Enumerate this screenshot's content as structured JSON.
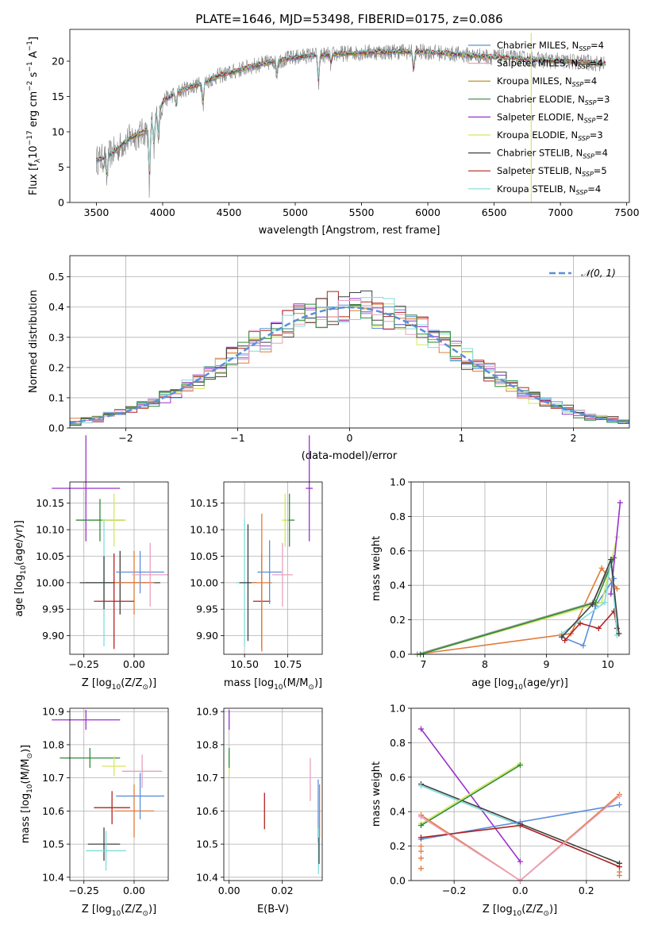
{
  "colors": {
    "chabrier_miles": "#5b8fdb",
    "salpeter_miles": "#e8a0c0",
    "kroupa_miles": "#b8860b",
    "chabrier_elodie": "#2e8b3a",
    "salpeter_elodie": "#9932cc",
    "kroupa_elodie": "#d4e860",
    "chabrier_stelib": "#404040",
    "salpeter_stelib": "#b22222",
    "kroupa_stelib": "#7fdcdc",
    "orange": "#e07b39",
    "gauss": "#5b8fdb",
    "gray_spectrum": "#808080"
  },
  "chart_data": [
    {
      "id": "spectrum",
      "type": "line",
      "title": "PLATE=1646, MJD=53498, FIBERID=0175, z=0.086",
      "xlabel": "wavelength [Angstrom, rest frame]",
      "ylabel_parts": [
        "Flux [f",
        "λ",
        "10",
        "−17",
        " erg cm",
        "−2",
        " s",
        "−1",
        " A",
        "−1",
        "]"
      ],
      "xlim": [
        3300,
        7520
      ],
      "ylim": [
        0,
        24.5
      ],
      "xticks": [
        3500,
        4000,
        4500,
        5000,
        5500,
        6000,
        6500,
        7000,
        7500
      ],
      "yticks": [
        0,
        5,
        10,
        15,
        20
      ],
      "grid": false,
      "legend_position": "top-right",
      "legend": [
        {
          "label": "Chabrier MILES, N",
          "sub": "SSP",
          "suffix": "=4",
          "color": "#5b8fdb"
        },
        {
          "label": "Salpeter MILES, N",
          "sub": "SSP",
          "suffix": "=4",
          "color": "#e8a0c0"
        },
        {
          "label": "Kroupa MILES, N",
          "sub": "SSP",
          "suffix": "=4",
          "color": "#b8860b"
        },
        {
          "label": "Chabrier ELODIE, N",
          "sub": "SSP",
          "suffix": "=3",
          "color": "#2e8b3a"
        },
        {
          "label": "Salpeter ELODIE, N",
          "sub": "SSP",
          "suffix": "=2",
          "color": "#9932cc"
        },
        {
          "label": "Kroupa ELODIE, N",
          "sub": "SSP",
          "suffix": "=3",
          "color": "#d4e860"
        },
        {
          "label": "Chabrier STELIB, N",
          "sub": "SSP",
          "suffix": "=4",
          "color": "#404040"
        },
        {
          "label": "Salpeter STELIB, N",
          "sub": "SSP",
          "suffix": "=5",
          "color": "#b22222"
        },
        {
          "label": "Kroupa STELIB, N",
          "sub": "SSP",
          "suffix": "=4",
          "color": "#7fdcdc"
        }
      ],
      "continuum": [
        [
          3500,
          6.0
        ],
        [
          3560,
          6.3
        ],
        [
          3640,
          7.3
        ],
        [
          3700,
          8.3
        ],
        [
          3760,
          9.2
        ],
        [
          3820,
          9.6
        ],
        [
          3880,
          10.2
        ],
        [
          3960,
          12.5
        ],
        [
          4010,
          14.5
        ],
        [
          4100,
          15.5
        ],
        [
          4200,
          16.3
        ],
        [
          4300,
          16.8
        ],
        [
          4400,
          17.8
        ],
        [
          4500,
          18.3
        ],
        [
          4600,
          18.9
        ],
        [
          4700,
          19.4
        ],
        [
          4800,
          19.8
        ],
        [
          4900,
          20.2
        ],
        [
          5000,
          20.5
        ],
        [
          5100,
          20.8
        ],
        [
          5200,
          20.8
        ],
        [
          5300,
          21.0
        ],
        [
          5400,
          21.1
        ],
        [
          5500,
          21.2
        ],
        [
          5600,
          21.3
        ],
        [
          5700,
          21.3
        ],
        [
          5800,
          21.4
        ],
        [
          5900,
          21.3
        ],
        [
          6000,
          21.3
        ],
        [
          6200,
          21.0
        ],
        [
          6400,
          20.7
        ],
        [
          6600,
          20.5
        ],
        [
          6800,
          20.2
        ],
        [
          7000,
          20.0
        ],
        [
          7200,
          19.8
        ],
        [
          7340,
          19.6
        ]
      ],
      "absorption_features": [
        {
          "x": 3580,
          "depth": 3.5
        },
        {
          "x": 3900,
          "depth": 9.0
        },
        {
          "x": 3934,
          "depth": 4.5
        },
        {
          "x": 3969,
          "depth": 3.5
        },
        {
          "x": 4102,
          "depth": 2.0
        },
        {
          "x": 4305,
          "depth": 3.0
        },
        {
          "x": 4861,
          "depth": 2.0
        },
        {
          "x": 5175,
          "depth": 4.5
        },
        {
          "x": 5270,
          "depth": 1.5
        },
        {
          "x": 5893,
          "depth": 3.0
        }
      ],
      "noise_amplitude": 1.2,
      "spikes": [
        {
          "x": 6780,
          "y_top": 24.0,
          "y_bottom": 0
        }
      ]
    },
    {
      "id": "residuals",
      "type": "histogram",
      "xlabel": "(data-model)/error",
      "ylabel": "Normed distribution",
      "xlim": [
        -2.5,
        2.5
      ],
      "ylim": [
        0,
        0.57
      ],
      "xticks": [
        -2,
        -1,
        0,
        1,
        2
      ],
      "yticks": [
        0.0,
        0.1,
        0.2,
        0.3,
        0.4,
        0.5
      ],
      "grid": true,
      "legend_position": "top-right",
      "gauss_label": "𝒩(0, 1)",
      "bin_width": 0.1
    },
    {
      "id": "age-vs-z",
      "type": "errorbar",
      "xlabel_parts": [
        "Z [log",
        "10",
        "(Z/Z",
        "⊙",
        ")]"
      ],
      "ylabel_parts": [
        "age  [log",
        "10",
        "(age/yr)]"
      ],
      "xlim": [
        -0.32,
        0.17
      ],
      "ylim": [
        9.865,
        10.19
      ],
      "xticks": [
        -0.25,
        0.0
      ],
      "yticks": [
        9.9,
        9.95,
        10.0,
        10.05,
        10.1,
        10.15
      ],
      "points": [
        {
          "x": -0.07,
          "y": 10.0,
          "xerr": 0.2,
          "yerr": 0.06,
          "color": "#404040"
        },
        {
          "x": 0.03,
          "y": 10.02,
          "xerr": 0.12,
          "yerr": 0.04,
          "color": "#5b8fdb"
        },
        {
          "x": -0.15,
          "y": 10.0,
          "xerr": 0.08,
          "yerr": 0.12,
          "color": "#7fdcdc"
        },
        {
          "x": -0.15,
          "y": 10.0,
          "xerr": 0.09,
          "yerr": 0.05,
          "color": "#404040"
        },
        {
          "x": 0.0,
          "y": 10.0,
          "xerr": 0.1,
          "yerr": 0.06,
          "color": "#e07b39"
        },
        {
          "x": -0.1,
          "y": 9.965,
          "xerr": 0.1,
          "yerr": 0.09,
          "color": "#b22222"
        },
        {
          "x": -0.17,
          "y": 10.118,
          "xerr": 0.12,
          "yerr": 0.04,
          "color": "#2e8b3a"
        },
        {
          "x": -0.24,
          "y": 10.178,
          "xerr": 0.17,
          "yerr": 0.1,
          "color": "#9932cc"
        },
        {
          "x": -0.1,
          "y": 10.118,
          "xerr": 0.06,
          "yerr": 0.05,
          "color": "#d4e860"
        },
        {
          "x": 0.08,
          "y": 10.015,
          "xerr": 0.09,
          "yerr": 0.06,
          "color": "#e8a0c0"
        }
      ]
    },
    {
      "id": "age-vs-mass",
      "type": "errorbar",
      "xlabel_parts": [
        "mass [log",
        "10",
        "(M/M",
        "⊙",
        ")]"
      ],
      "ylabel_parts": [],
      "xlim": [
        10.38,
        10.95
      ],
      "ylim": [
        9.865,
        10.19
      ],
      "xticks": [
        10.5,
        10.75
      ],
      "yticks": [
        9.9,
        9.95,
        10.0,
        10.05,
        10.1,
        10.15
      ],
      "points": [
        {
          "x": 10.5,
          "y": 10.0,
          "xerr": 0.05,
          "yerr": 0.12,
          "color": "#7fdcdc"
        },
        {
          "x": 10.52,
          "y": 10.0,
          "xerr": 0.05,
          "yerr": 0.11,
          "color": "#404040"
        },
        {
          "x": 10.6,
          "y": 9.965,
          "xerr": 0.05,
          "yerr": 0.09,
          "color": "#b22222"
        },
        {
          "x": 10.6,
          "y": 10.0,
          "xerr": 0.06,
          "yerr": 0.13,
          "color": "#e07b39"
        },
        {
          "x": 10.645,
          "y": 10.02,
          "xerr": 0.07,
          "yerr": 0.06,
          "color": "#5b8fdb"
        },
        {
          "x": 10.72,
          "y": 10.015,
          "xerr": 0.06,
          "yerr": 0.06,
          "color": "#e8a0c0"
        },
        {
          "x": 10.76,
          "y": 10.118,
          "xerr": 0.03,
          "yerr": 0.05,
          "color": "#2e8b3a"
        },
        {
          "x": 10.735,
          "y": 10.118,
          "xerr": 0.02,
          "yerr": 0.05,
          "color": "#d4e860"
        },
        {
          "x": 10.875,
          "y": 10.178,
          "xerr": 0.02,
          "yerr": 0.1,
          "color": "#9932cc"
        }
      ]
    },
    {
      "id": "weight-vs-age",
      "type": "line",
      "xlabel_parts": [
        "age  [log",
        "10",
        "(age/yr)]"
      ],
      "ylabel": "mass weight",
      "xlim": [
        6.8,
        10.35
      ],
      "ylim": [
        0,
        1.0
      ],
      "xticks": [
        7,
        8,
        9,
        10
      ],
      "yticks": [
        0.0,
        0.2,
        0.4,
        0.6,
        0.8,
        1.0
      ],
      "grid": true,
      "series": [
        {
          "color": "#e07b39",
          "points": [
            [
              6.9,
              0.0
            ],
            [
              9.4,
              0.12
            ],
            [
              9.9,
              0.5
            ],
            [
              10.15,
              0.38
            ]
          ]
        },
        {
          "color": "#5b8fdb",
          "points": [
            [
              9.25,
              0.1
            ],
            [
              9.6,
              0.05
            ],
            [
              9.8,
              0.28
            ],
            [
              10.1,
              0.44
            ]
          ]
        },
        {
          "color": "#b22222",
          "points": [
            [
              9.3,
              0.08
            ],
            [
              9.55,
              0.18
            ],
            [
              9.85,
              0.15
            ],
            [
              10.1,
              0.25
            ],
            [
              10.15,
              0.15
            ]
          ]
        },
        {
          "color": "#d4e860",
          "points": [
            [
              6.95,
              0.0
            ],
            [
              9.9,
              0.3
            ],
            [
              10.15,
              0.68
            ]
          ]
        },
        {
          "color": "#9e9e9e",
          "points": [
            [
              6.9,
              0.0
            ],
            [
              9.75,
              0.3
            ],
            [
              10.1,
              0.56
            ]
          ]
        },
        {
          "color": "#2e8b3a",
          "points": [
            [
              6.95,
              0.0
            ],
            [
              9.8,
              0.3
            ],
            [
              10.1,
              0.56
            ]
          ]
        },
        {
          "color": "#9932cc",
          "points": [
            [
              10.05,
              0.35
            ],
            [
              10.2,
              0.88
            ]
          ]
        },
        {
          "color": "#7fdcdc",
          "points": [
            [
              9.25,
              0.12
            ],
            [
              9.95,
              0.3
            ],
            [
              10.05,
              0.55
            ],
            [
              10.15,
              0.11
            ]
          ]
        },
        {
          "color": "#404040",
          "points": [
            [
              9.25,
              0.1
            ],
            [
              9.75,
              0.29
            ],
            [
              10.05,
              0.55
            ],
            [
              10.18,
              0.12
            ]
          ]
        }
      ]
    },
    {
      "id": "mass-vs-z",
      "type": "errorbar",
      "xlabel_parts": [
        "Z [log",
        "10",
        "(Z/Z",
        "⊙",
        ")]"
      ],
      "ylabel_parts": [
        "mass [log",
        "10",
        "(M/M",
        "⊙",
        ")]"
      ],
      "xlim": [
        -0.32,
        0.17
      ],
      "ylim": [
        10.39,
        10.91
      ],
      "xticks": [
        -0.25,
        0.0
      ],
      "yticks": [
        10.4,
        10.5,
        10.6,
        10.7,
        10.8,
        10.9
      ],
      "points": [
        {
          "x": -0.24,
          "y": 10.875,
          "xerr": 0.17,
          "yerr": 0.03,
          "color": "#9932cc"
        },
        {
          "x": -0.22,
          "y": 10.76,
          "xerr": 0.15,
          "yerr": 0.03,
          "color": "#2e8b3a"
        },
        {
          "x": -0.1,
          "y": 10.735,
          "xerr": 0.06,
          "yerr": 0.03,
          "color": "#d4e860"
        },
        {
          "x": 0.04,
          "y": 10.72,
          "xerr": 0.1,
          "yerr": 0.05,
          "color": "#e8a0c0"
        },
        {
          "x": 0.03,
          "y": 10.645,
          "xerr": 0.12,
          "yerr": 0.07,
          "color": "#5b8fdb"
        },
        {
          "x": -0.11,
          "y": 10.61,
          "xerr": 0.09,
          "yerr": 0.05,
          "color": "#b22222"
        },
        {
          "x": 0.0,
          "y": 10.6,
          "xerr": 0.1,
          "yerr": 0.08,
          "color": "#e07b39"
        },
        {
          "x": -0.15,
          "y": 10.5,
          "xerr": 0.08,
          "yerr": 0.05,
          "color": "#404040"
        },
        {
          "x": -0.14,
          "y": 10.48,
          "xerr": 0.1,
          "yerr": 0.06,
          "color": "#7fdcdc"
        }
      ]
    },
    {
      "id": "mass-vs-ebv",
      "type": "errorbar",
      "xlabel": "E(B-V)",
      "ylabel_parts": [],
      "xlim": [
        -0.002,
        0.035
      ],
      "ylim": [
        10.39,
        10.91
      ],
      "xticks": [
        0.0,
        0.02
      ],
      "yticks": [
        10.4,
        10.5,
        10.6,
        10.7,
        10.8,
        10.9
      ],
      "points": [
        {
          "x": 0.0,
          "y": 10.875,
          "xerr": 0.0,
          "yerr": 0.03,
          "color": "#9932cc"
        },
        {
          "x": 0.0,
          "y": 10.735,
          "xerr": 0.0,
          "yerr": 0.03,
          "color": "#d4e860"
        },
        {
          "x": 0.0,
          "y": 10.76,
          "xerr": 0.0,
          "yerr": 0.03,
          "color": "#2e8b3a"
        },
        {
          "x": 0.0133,
          "y": 10.6,
          "xerr": 0.0,
          "yerr": 0.055,
          "color": "#b22222"
        },
        {
          "x": 0.0305,
          "y": 10.695,
          "xerr": 0.0,
          "yerr": 0.065,
          "color": "#e8a0c0"
        },
        {
          "x": 0.0335,
          "y": 10.6,
          "xerr": 0.0,
          "yerr": 0.095,
          "color": "#5b8fdb"
        },
        {
          "x": 0.034,
          "y": 10.6,
          "xerr": 0.0,
          "yerr": 0.08,
          "color": "#e07b39"
        },
        {
          "x": 0.0336,
          "y": 10.48,
          "xerr": 0.0,
          "yerr": 0.07,
          "color": "#7fdcdc"
        },
        {
          "x": 0.0338,
          "y": 10.48,
          "xerr": 0.0,
          "yerr": 0.04,
          "color": "#404040"
        }
      ]
    },
    {
      "id": "weight-vs-z",
      "type": "line",
      "xlabel_parts": [
        "Z [log",
        "10",
        "(Z/Z",
        "⊙",
        ")]"
      ],
      "ylabel": "mass weight",
      "xlim": [
        -0.33,
        0.33
      ],
      "ylim": [
        0,
        1.0
      ],
      "xticks": [
        -0.2,
        0.0,
        0.2
      ],
      "yticks": [
        0.0,
        0.2,
        0.4,
        0.6,
        0.8,
        1.0
      ],
      "grid": true,
      "series": [
        {
          "color": "#9932cc",
          "points": [
            [
              -0.3,
              0.88
            ],
            [
              0.0,
              0.11
            ]
          ]
        },
        {
          "color": "#404040",
          "points": [
            [
              -0.3,
              0.56
            ],
            [
              0.0,
              0.33
            ],
            [
              0.3,
              0.1
            ]
          ]
        },
        {
          "color": "#7fdcdc",
          "points": [
            [
              -0.3,
              0.55
            ],
            [
              0.0,
              0.32
            ],
            [
              0.3,
              0.08
            ]
          ]
        },
        {
          "color": "#d4e860",
          "points": [
            [
              -0.3,
              0.33
            ],
            [
              0.0,
              0.68
            ]
          ]
        },
        {
          "color": "#2e8b3a",
          "points": [
            [
              -0.3,
              0.32
            ],
            [
              0.0,
              0.67
            ]
          ]
        },
        {
          "color": "#e07b39",
          "points": [
            [
              -0.3,
              0.38
            ],
            [
              0.0,
              0.0
            ],
            [
              0.3,
              0.5
            ]
          ]
        },
        {
          "color": "#5b8fdb",
          "points": [
            [
              -0.3,
              0.24
            ],
            [
              0.0,
              0.34
            ],
            [
              0.3,
              0.44
            ]
          ]
        },
        {
          "color": "#b22222",
          "points": [
            [
              -0.3,
              0.25
            ],
            [
              0.0,
              0.32
            ],
            [
              0.3,
              0.08
            ]
          ]
        },
        {
          "color": "#e8a0c0",
          "points": [
            [
              -0.3,
              0.37
            ],
            [
              0.0,
              0.0
            ],
            [
              0.3,
              0.49
            ]
          ]
        }
      ],
      "markers_vertical": [
        {
          "x": -0.3,
          "ys": [
            0.13,
            0.17,
            0.2,
            0.07
          ]
        },
        {
          "x": 0.3,
          "ys": [
            0.03,
            0.05
          ]
        }
      ]
    }
  ]
}
